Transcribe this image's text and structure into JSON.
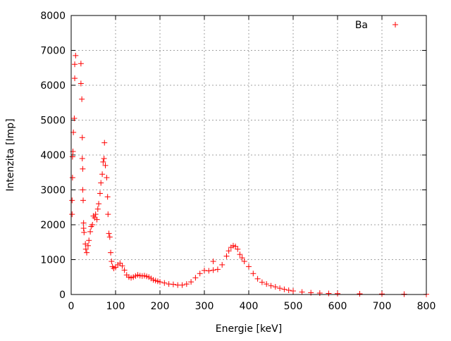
{
  "chart_data": {
    "type": "scatter",
    "title": "",
    "xlabel": "Energie [keV]",
    "ylabel": "Intenzita [Imp]",
    "xlim": [
      0,
      800
    ],
    "ylim": [
      0,
      8000
    ],
    "xticks": [
      0,
      100,
      200,
      300,
      400,
      500,
      600,
      700,
      800
    ],
    "yticks": [
      0,
      1000,
      2000,
      3000,
      4000,
      5000,
      6000,
      7000,
      8000
    ],
    "grid": true,
    "legend_position": "top-right",
    "marker": "plus",
    "series": [
      {
        "name": "Ba",
        "color": "#ff0000",
        "points": [
          [
            2,
            2300
          ],
          [
            2,
            2700
          ],
          [
            3,
            3350
          ],
          [
            3,
            3950
          ],
          [
            4,
            4100
          ],
          [
            5,
            4650
          ],
          [
            7,
            5050
          ],
          [
            8,
            6200
          ],
          [
            8,
            6600
          ],
          [
            10,
            6850
          ],
          [
            22,
            6620
          ],
          [
            22,
            6050
          ],
          [
            24,
            5600
          ],
          [
            25,
            4500
          ],
          [
            25,
            3900
          ],
          [
            26,
            3600
          ],
          [
            26,
            3000
          ],
          [
            27,
            2700
          ],
          [
            28,
            2050
          ],
          [
            28,
            1900
          ],
          [
            29,
            1780
          ],
          [
            32,
            1450
          ],
          [
            33,
            1300
          ],
          [
            35,
            1200
          ],
          [
            38,
            1400
          ],
          [
            40,
            1550
          ],
          [
            43,
            1800
          ],
          [
            45,
            1950
          ],
          [
            48,
            2000
          ],
          [
            50,
            2250
          ],
          [
            53,
            2200
          ],
          [
            55,
            2300
          ],
          [
            58,
            2150
          ],
          [
            60,
            2450
          ],
          [
            62,
            2600
          ],
          [
            65,
            2900
          ],
          [
            67,
            3200
          ],
          [
            70,
            3450
          ],
          [
            72,
            3800
          ],
          [
            74,
            3900
          ],
          [
            75,
            4350
          ],
          [
            77,
            3700
          ],
          [
            80,
            3350
          ],
          [
            82,
            2800
          ],
          [
            83,
            2300
          ],
          [
            85,
            1750
          ],
          [
            87,
            1650
          ],
          [
            89,
            1200
          ],
          [
            91,
            950
          ],
          [
            93,
            800
          ],
          [
            96,
            750
          ],
          [
            100,
            780
          ],
          [
            105,
            850
          ],
          [
            110,
            900
          ],
          [
            115,
            820
          ],
          [
            120,
            700
          ],
          [
            125,
            560
          ],
          [
            130,
            500
          ],
          [
            135,
            480
          ],
          [
            140,
            500
          ],
          [
            145,
            530
          ],
          [
            150,
            560
          ],
          [
            155,
            540
          ],
          [
            160,
            530
          ],
          [
            165,
            540
          ],
          [
            170,
            520
          ],
          [
            175,
            500
          ],
          [
            180,
            460
          ],
          [
            185,
            420
          ],
          [
            190,
            400
          ],
          [
            195,
            380
          ],
          [
            200,
            360
          ],
          [
            210,
            330
          ],
          [
            220,
            300
          ],
          [
            230,
            290
          ],
          [
            240,
            270
          ],
          [
            250,
            270
          ],
          [
            260,
            300
          ],
          [
            270,
            360
          ],
          [
            280,
            480
          ],
          [
            290,
            600
          ],
          [
            300,
            690
          ],
          [
            310,
            680
          ],
          [
            320,
            700
          ],
          [
            320,
            950
          ],
          [
            330,
            720
          ],
          [
            340,
            850
          ],
          [
            350,
            1100
          ],
          [
            355,
            1250
          ],
          [
            360,
            1350
          ],
          [
            365,
            1400
          ],
          [
            370,
            1380
          ],
          [
            375,
            1300
          ],
          [
            380,
            1150
          ],
          [
            385,
            1050
          ],
          [
            390,
            950
          ],
          [
            400,
            800
          ],
          [
            410,
            600
          ],
          [
            420,
            450
          ],
          [
            430,
            350
          ],
          [
            440,
            300
          ],
          [
            450,
            250
          ],
          [
            460,
            220
          ],
          [
            470,
            180
          ],
          [
            480,
            150
          ],
          [
            490,
            120
          ],
          [
            500,
            100
          ],
          [
            520,
            70
          ],
          [
            540,
            50
          ],
          [
            560,
            40
          ],
          [
            580,
            30
          ],
          [
            600,
            25
          ],
          [
            650,
            20
          ],
          [
            700,
            15
          ],
          [
            750,
            10
          ],
          [
            800,
            5
          ]
        ]
      }
    ]
  }
}
